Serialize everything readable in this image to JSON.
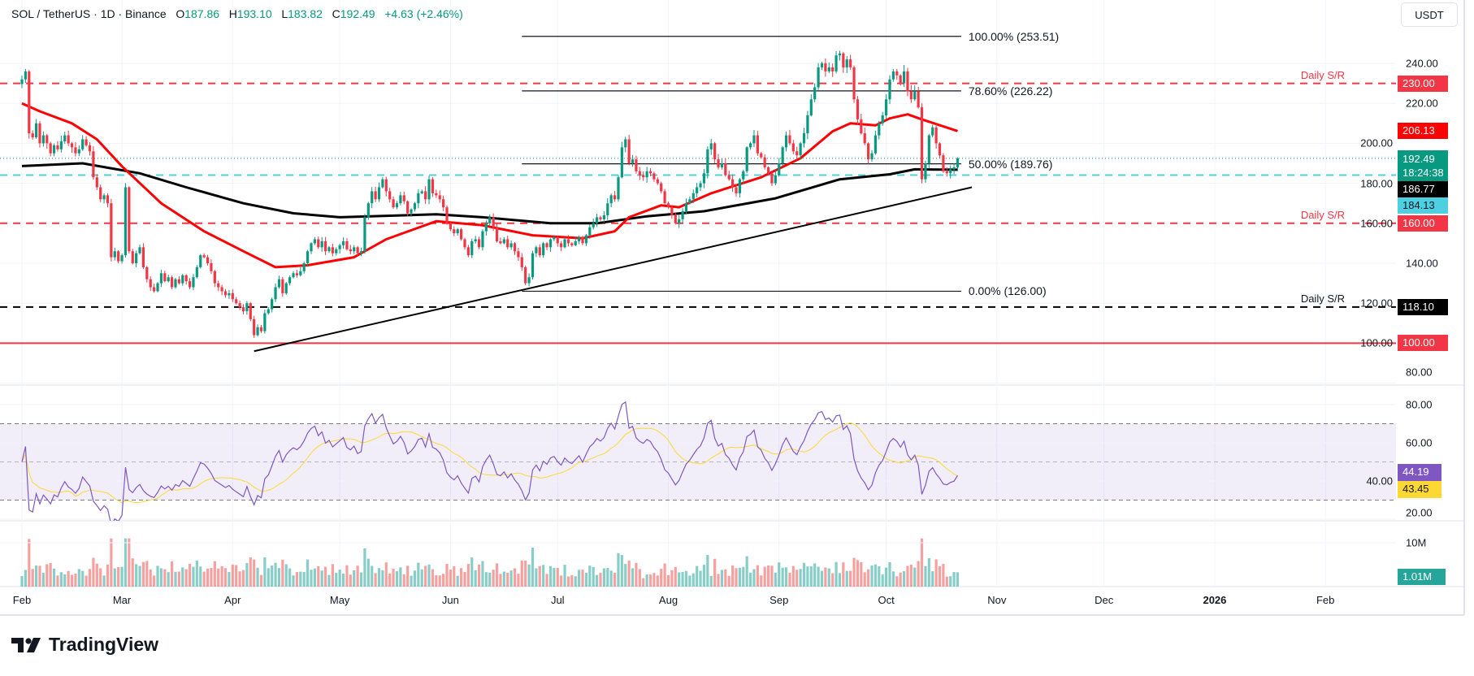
{
  "header": {
    "symbol": "SOL / TetherUS · 1D · Binance",
    "open_label": "O",
    "open": "187.86",
    "high_label": "H",
    "high": "193.10",
    "low_label": "L",
    "low": "183.82",
    "close_label": "C",
    "close": "192.49",
    "change": "+4.63 (+2.46%)"
  },
  "currency_button": "USDT",
  "footer": {
    "brand": "TradingView"
  },
  "colors": {
    "up": "#089981",
    "down": "#f23645",
    "ma50": "#ff0000",
    "ma200": "#000000",
    "rsi": "#7e57c2",
    "rsi_ma": "#fdd835",
    "cyan": "#4dd0e1"
  },
  "chart_data": {
    "type": "candlestick",
    "price_axis": {
      "ticks": [
        240,
        220,
        200,
        180,
        160,
        140,
        120,
        100,
        80
      ],
      "tick_labels": [
        "240.00",
        "220.00",
        "200.00",
        "180.00",
        "160.00",
        "140.00",
        "120.00",
        "100.00",
        "80.00"
      ]
    },
    "time_axis": [
      {
        "label": "Feb",
        "date": "2025-02-01"
      },
      {
        "label": "Mar",
        "date": "2025-03-01"
      },
      {
        "label": "Apr",
        "date": "2025-04-01"
      },
      {
        "label": "May",
        "date": "2025-05-01"
      },
      {
        "label": "Jun",
        "date": "2025-06-01"
      },
      {
        "label": "Jul",
        "date": "2025-07-01"
      },
      {
        "label": "Aug",
        "date": "2025-08-01"
      },
      {
        "label": "Sep",
        "date": "2025-09-01"
      },
      {
        "label": "Oct",
        "date": "2025-10-01"
      },
      {
        "label": "Nov",
        "date": "2025-11-01"
      },
      {
        "label": "Dec",
        "date": "2025-12-01"
      },
      {
        "label": "2026",
        "date": "2026-01-01",
        "bold": true
      },
      {
        "label": "Feb",
        "date": "2026-02-01"
      }
    ],
    "daily_closes": {
      "2025-02": [
        232,
        236,
        205,
        203,
        210,
        200,
        204,
        200,
        195,
        199,
        197,
        201,
        204,
        200,
        198,
        195,
        197,
        202,
        199,
        196,
        183,
        178,
        172,
        174,
        170,
        143,
        146,
        141
      ],
      "2025-03": [
        144,
        178,
        146,
        140,
        145,
        148,
        138,
        132,
        128,
        126,
        130,
        135,
        131,
        133,
        128,
        132,
        130,
        134,
        131,
        128,
        133,
        138,
        144,
        143,
        140,
        136,
        130,
        128,
        126,
        124,
        125
      ],
      "2025-04": [
        122,
        120,
        118,
        116,
        120,
        112,
        104,
        108,
        106,
        115,
        117,
        122,
        128,
        132,
        125,
        130,
        133,
        135,
        134,
        136,
        140,
        146,
        150,
        152,
        148,
        151,
        146,
        148,
        145,
        147
      ],
      "2025-05": [
        149,
        151,
        147,
        146,
        148,
        145,
        146,
        163,
        170,
        176,
        172,
        178,
        182,
        176,
        172,
        168,
        170,
        174,
        171,
        165,
        167,
        170,
        175,
        176,
        172,
        182,
        175,
        174,
        172,
        168,
        160
      ],
      "2025-06": [
        157,
        155,
        157,
        152,
        148,
        144,
        151,
        152,
        148,
        156,
        160,
        163,
        158,
        151,
        150,
        152,
        148,
        150,
        146,
        143,
        138,
        130,
        133,
        145,
        148,
        144,
        150,
        148,
        152,
        153
      ],
      "2025-07": [
        150,
        148,
        152,
        150,
        149,
        151,
        153,
        150,
        154,
        158,
        160,
        163,
        162,
        164,
        170,
        174,
        172,
        183,
        198,
        202,
        190,
        192,
        186,
        184,
        183,
        186,
        185,
        182,
        180,
        176,
        170
      ],
      "2025-08": [
        168,
        164,
        160,
        162,
        166,
        170,
        172,
        175,
        178,
        180,
        185,
        197,
        200,
        192,
        188,
        190,
        184,
        182,
        178,
        175,
        182,
        186,
        198,
        200,
        204,
        195,
        193,
        188,
        185,
        180,
        184
      ],
      "2025-09": [
        190,
        198,
        204,
        200,
        196,
        194,
        200,
        205,
        214,
        222,
        228,
        238,
        240,
        236,
        238,
        236,
        244,
        245,
        238,
        242,
        238,
        222,
        212,
        205,
        200,
        192,
        195,
        204,
        210,
        214
      ],
      "2025-10": [
        222,
        232,
        236,
        234,
        230,
        236,
        226,
        222,
        226,
        218,
        182,
        190,
        204,
        208,
        200,
        194,
        186,
        185,
        187,
        188,
        192.49
      ]
    },
    "ma50": [
      [
        "2025-02-01",
        220
      ],
      [
        "2025-02-06",
        216
      ],
      [
        "2025-02-15",
        210
      ],
      [
        "2025-02-22",
        202
      ],
      [
        "2025-03-01",
        188.5
      ],
      [
        "2025-03-12",
        170
      ],
      [
        "2025-03-24",
        156
      ],
      [
        "2025-04-04",
        146
      ],
      [
        "2025-04-13",
        138
      ],
      [
        "2025-04-22",
        139
      ],
      [
        "2025-05-05",
        143
      ],
      [
        "2025-05-14",
        152
      ],
      [
        "2025-05-28",
        161
      ],
      [
        "2025-06-10",
        159
      ],
      [
        "2025-06-24",
        154
      ],
      [
        "2025-07-08",
        152.5
      ],
      [
        "2025-07-17",
        156
      ],
      [
        "2025-07-21",
        163
      ],
      [
        "2025-07-30",
        169
      ],
      [
        "2025-08-04",
        168
      ],
      [
        "2025-08-13",
        175
      ],
      [
        "2025-08-27",
        183
      ],
      [
        "2025-09-07",
        192.5
      ],
      [
        "2025-09-16",
        206
      ],
      [
        "2025-09-21",
        210
      ],
      [
        "2025-09-28",
        209
      ],
      [
        "2025-10-02",
        212.5
      ],
      [
        "2025-10-07",
        214.5
      ],
      [
        "2025-10-11",
        212
      ],
      [
        "2025-10-21",
        206.13
      ]
    ],
    "ma200": [
      [
        "2025-02-01",
        188.6
      ],
      [
        "2025-02-18",
        190
      ],
      [
        "2025-03-06",
        185
      ],
      [
        "2025-03-19",
        178
      ],
      [
        "2025-04-04",
        170
      ],
      [
        "2025-04-18",
        165
      ],
      [
        "2025-05-01",
        163
      ],
      [
        "2025-05-28",
        164.5
      ],
      [
        "2025-06-10",
        163
      ],
      [
        "2025-06-29",
        160
      ],
      [
        "2025-07-12",
        160
      ],
      [
        "2025-07-26",
        163.5
      ],
      [
        "2025-08-11",
        166
      ],
      [
        "2025-08-31",
        172.5
      ],
      [
        "2025-09-18",
        182
      ],
      [
        "2025-10-02",
        184.5
      ],
      [
        "2025-10-09",
        187
      ],
      [
        "2025-10-21",
        186.77
      ]
    ],
    "trendline": [
      [
        "2025-04-07",
        96
      ],
      [
        "2025-10-25",
        178
      ]
    ],
    "fibonacci": {
      "from": "2025-06-21",
      "to": "2025-10-22",
      "levels": [
        {
          "label": "100.00% (253.51)",
          "price": 253.51
        },
        {
          "label": "78.60% (226.22)",
          "price": 226.22
        },
        {
          "label": "50.00% (189.76)",
          "price": 189.76
        },
        {
          "label": "0.00% (126.00)",
          "price": 126.0
        }
      ]
    },
    "horizontal_lines": [
      {
        "price": 230,
        "style": "dashed",
        "color": "#f23645",
        "label": "Daily S/R"
      },
      {
        "price": 160,
        "style": "dashed",
        "color": "#f23645",
        "label": "Daily S/R"
      },
      {
        "price": 118.1,
        "style": "dashed",
        "color": "#000000",
        "label": "Daily S/R"
      },
      {
        "price": 100,
        "style": "solid",
        "color": "#f23645",
        "label": ""
      },
      {
        "price": 184.13,
        "style": "dashed",
        "color": "#4dd0e1",
        "label": ""
      },
      {
        "price": 192.49,
        "style": "dotted",
        "color": "#089981",
        "label": ""
      }
    ],
    "price_tags": [
      {
        "price": 230,
        "text": "230.00",
        "sub": "",
        "bg": "#f23645",
        "fg": "#ffffff"
      },
      {
        "price": 206.13,
        "text": "206.13",
        "sub": "",
        "bg": "#ff0000",
        "fg": "#ffffff"
      },
      {
        "price": 192.49,
        "text": "192.49",
        "sub": "18:24:38",
        "bg": "#089981",
        "fg": "#ffffff"
      },
      {
        "price": 186.77,
        "text": "186.77",
        "sub": "",
        "bg": "#000000",
        "fg": "#ffffff"
      },
      {
        "price": 184.13,
        "text": "184.13",
        "sub": "",
        "bg": "#4dd0e1",
        "fg": "#131722"
      },
      {
        "price": 160,
        "text": "160.00",
        "sub": "",
        "bg": "#f23645",
        "fg": "#ffffff"
      },
      {
        "price": 118.1,
        "text": "118.10",
        "sub": "",
        "bg": "#000000",
        "fg": "#ffffff"
      },
      {
        "price": 100,
        "text": "100.00",
        "sub": "",
        "bg": "#f23645",
        "fg": "#ffffff"
      }
    ],
    "rsi": {
      "ticks": [
        80,
        60,
        40,
        20
      ],
      "tick_labels": [
        "80.00",
        "60.00",
        "40.00",
        "20.00"
      ],
      "bands": [
        70,
        50,
        30
      ],
      "value": "44.19",
      "ma_value": "43.45"
    },
    "volume": {
      "ticks_label": "10M",
      "value": "1.01M"
    }
  }
}
